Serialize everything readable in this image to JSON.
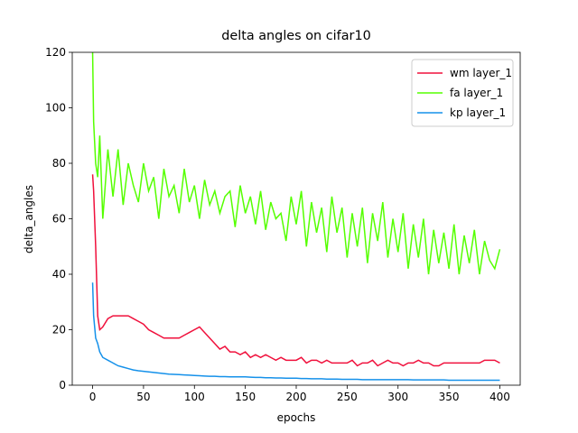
{
  "chart_data": {
    "type": "line",
    "title": "delta angles on cifar10",
    "x_label": "epochs",
    "y_label": "delta_angles",
    "x": [
      0,
      1,
      3,
      5,
      7,
      10,
      15,
      20,
      25,
      30,
      35,
      40,
      45,
      50,
      55,
      60,
      65,
      70,
      75,
      80,
      85,
      90,
      95,
      100,
      105,
      110,
      115,
      120,
      125,
      130,
      135,
      140,
      145,
      150,
      155,
      160,
      165,
      170,
      175,
      180,
      185,
      190,
      195,
      200,
      205,
      210,
      215,
      220,
      225,
      230,
      235,
      240,
      245,
      250,
      255,
      260,
      265,
      270,
      275,
      280,
      285,
      290,
      295,
      300,
      305,
      310,
      315,
      320,
      325,
      330,
      335,
      340,
      345,
      350,
      355,
      360,
      365,
      370,
      375,
      380,
      385,
      390,
      395,
      400
    ],
    "series": [
      {
        "name": "wm layer_1",
        "color": "#f0103c",
        "values": [
          76,
          70,
          50,
          25,
          20,
          21,
          24,
          25,
          25,
          25,
          25,
          24,
          23,
          22,
          20,
          19,
          18,
          17,
          17,
          17,
          17,
          18,
          19,
          20,
          21,
          19,
          17,
          15,
          13,
          14,
          12,
          12,
          11,
          12,
          10,
          11,
          10,
          11,
          10,
          9,
          10,
          9,
          9,
          9,
          10,
          8,
          9,
          9,
          8,
          9,
          8,
          8,
          8,
          8,
          9,
          7,
          8,
          8,
          9,
          7,
          8,
          9,
          8,
          8,
          7,
          8,
          8,
          9,
          8,
          8,
          7,
          7,
          8,
          8,
          8,
          8,
          8,
          8,
          8,
          8,
          9,
          9,
          9,
          8
        ]
      },
      {
        "name": "fa layer_1",
        "color": "#55ff00",
        "values": [
          120,
          95,
          80,
          75,
          90,
          60,
          85,
          68,
          85,
          65,
          80,
          72,
          66,
          80,
          70,
          75,
          60,
          78,
          68,
          72,
          62,
          78,
          66,
          72,
          60,
          74,
          65,
          70,
          62,
          68,
          70,
          57,
          72,
          62,
          68,
          58,
          70,
          56,
          66,
          60,
          62,
          52,
          68,
          58,
          70,
          50,
          66,
          55,
          64,
          48,
          68,
          55,
          64,
          46,
          62,
          50,
          64,
          44,
          62,
          52,
          66,
          46,
          60,
          48,
          62,
          42,
          58,
          46,
          60,
          40,
          56,
          44,
          55,
          42,
          58,
          40,
          54,
          44,
          56,
          40,
          52,
          45,
          42,
          49
        ]
      },
      {
        "name": "kp layer_1",
        "color": "#1591ea",
        "values": [
          37,
          25,
          17,
          15,
          12,
          10,
          9,
          8,
          7,
          6.5,
          6,
          5.5,
          5.2,
          5,
          4.8,
          4.6,
          4.4,
          4.2,
          4,
          3.9,
          3.8,
          3.7,
          3.6,
          3.5,
          3.4,
          3.3,
          3.2,
          3.2,
          3.1,
          3.1,
          3,
          3,
          3,
          3,
          2.9,
          2.8,
          2.8,
          2.7,
          2.7,
          2.6,
          2.6,
          2.5,
          2.5,
          2.5,
          2.4,
          2.4,
          2.3,
          2.3,
          2.3,
          2.2,
          2.2,
          2.2,
          2.1,
          2.1,
          2.1,
          2.1,
          2,
          2,
          2,
          2,
          2,
          2,
          2,
          2,
          2,
          2,
          1.9,
          1.9,
          1.9,
          1.9,
          1.9,
          1.9,
          1.9,
          1.8,
          1.8,
          1.8,
          1.8,
          1.8,
          1.8,
          1.8,
          1.8,
          1.8,
          1.8,
          1.8
        ]
      }
    ],
    "xlim": [
      -20,
      420
    ],
    "ylim": [
      0,
      120
    ],
    "xticks": [
      0,
      50,
      100,
      150,
      200,
      250,
      300,
      350,
      400
    ],
    "yticks": [
      0,
      20,
      40,
      60,
      80,
      100,
      120
    ],
    "legend": "upper right"
  }
}
